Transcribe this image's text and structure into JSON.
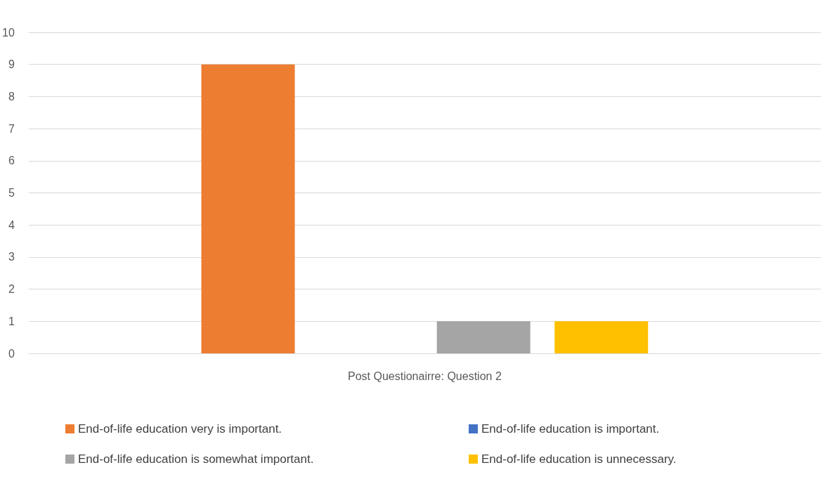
{
  "chart_data": {
    "type": "bar",
    "categories": [
      "Post Questionairre: Question 2"
    ],
    "series": [
      {
        "name": "End-of-life education very is important.",
        "color": "#ed7d31",
        "values": [
          9
        ]
      },
      {
        "name": "End-of-life education is important.",
        "color": "#4472c4",
        "values": [
          0
        ]
      },
      {
        "name": "End-of-life education is somewhat important.",
        "color": "#a5a5a5",
        "values": [
          1
        ]
      },
      {
        "name": "End-of-life education is unnecessary.",
        "color": "#ffc000",
        "values": [
          1
        ]
      }
    ],
    "ylim": [
      0,
      10
    ],
    "yticks": [
      0,
      1,
      2,
      3,
      4,
      5,
      6,
      7,
      8,
      9,
      10
    ],
    "grid": "y",
    "legend": "bottom"
  }
}
